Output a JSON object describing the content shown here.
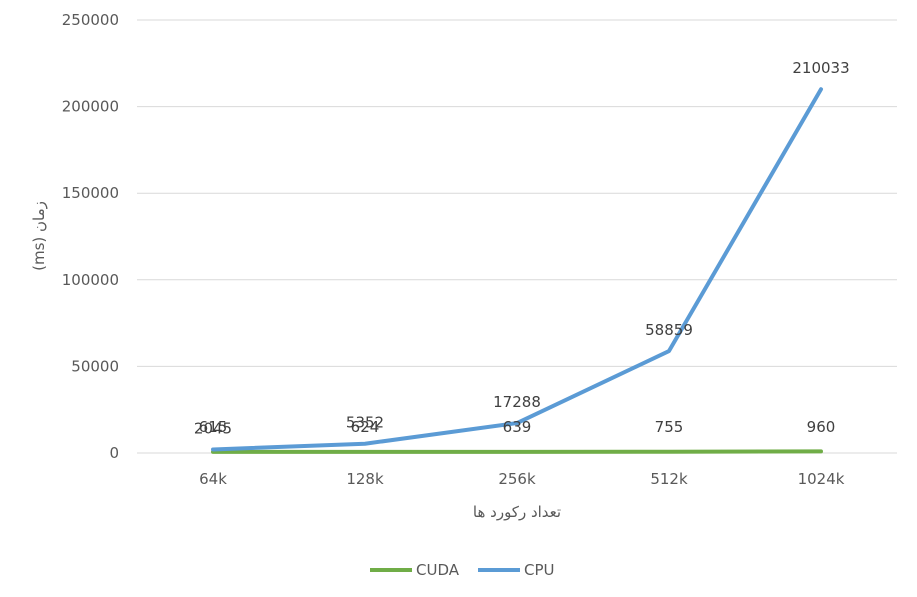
{
  "chart_data": {
    "type": "line",
    "categories": [
      "64k",
      "128k",
      "256k",
      "512k",
      "1024k"
    ],
    "series": [
      {
        "name": "CUDA",
        "color": "#70ad47",
        "values": [
          615,
          624,
          639,
          755,
          960
        ],
        "labels": [
          "615",
          "624",
          "639",
          "755",
          "960"
        ]
      },
      {
        "name": "CPU",
        "color": "#5b9bd5",
        "values": [
          2045,
          5352,
          17288,
          58859,
          210033
        ],
        "labels": [
          "2045",
          "5352",
          "17288",
          "58859",
          "210033"
        ]
      }
    ],
    "xlabel": "تعداد رکورد ها",
    "ylabel": "زمان (ms)",
    "ylim": [
      0,
      250000
    ],
    "yticks": [
      "0",
      "50000",
      "100000",
      "150000",
      "200000",
      "250000"
    ],
    "grid": true,
    "legend": "bottom-center",
    "gridColor": "#d9d9d9"
  }
}
